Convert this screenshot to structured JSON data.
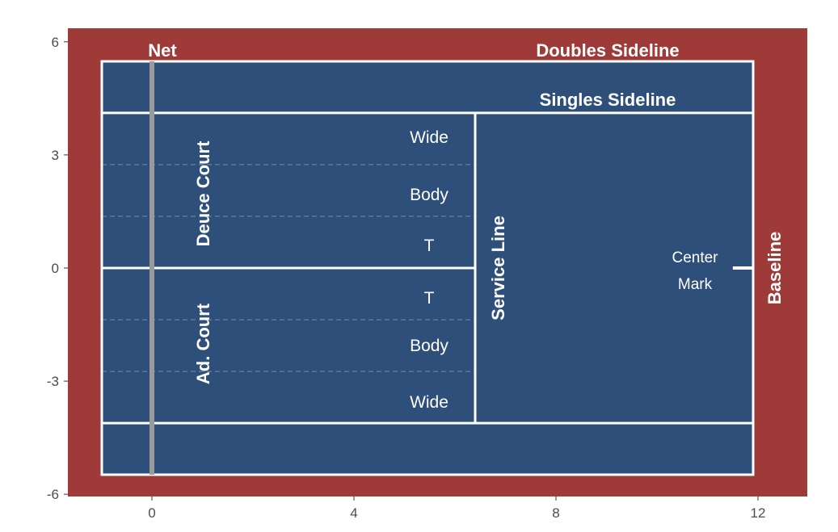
{
  "colors": {
    "surround": "#9e3a38",
    "court": "#2e4f7a",
    "line": "#ffffff",
    "net": "#9a9a9a",
    "axis_text": "#4d4d4d"
  },
  "axes": {
    "x_ticks": [
      0,
      4,
      8,
      12
    ],
    "x_tick_labels": [
      "0",
      "4",
      "8",
      "12"
    ],
    "y_ticks": [
      6,
      3,
      0,
      -3,
      -6
    ],
    "y_tick_labels": [
      "6",
      "3",
      "0",
      "-3",
      "-6"
    ]
  },
  "court": {
    "net_x": 0,
    "baseline_x": 11.885,
    "service_line_x": 6.4,
    "doubles_half_width": 5.485,
    "singles_half_width": 4.115,
    "service_box_left_x": -1.0,
    "serve_zone_dividers_y": [
      2.743,
      1.372,
      -1.372,
      -2.743
    ]
  },
  "labels": {
    "net": "Net",
    "doubles_sideline": "Doubles Sideline",
    "singles_sideline": "Singles Sideline",
    "deuce_court": "Deuce Court",
    "ad_court": "Ad. Court",
    "service_line": "Service Line",
    "baseline": "Baseline",
    "center_mark_line1": "Center",
    "center_mark_line2": "Mark",
    "deuce_wide": "Wide",
    "deuce_body": "Body",
    "deuce_t": "T",
    "ad_t": "T",
    "ad_body": "Body",
    "ad_wide": "Wide"
  }
}
